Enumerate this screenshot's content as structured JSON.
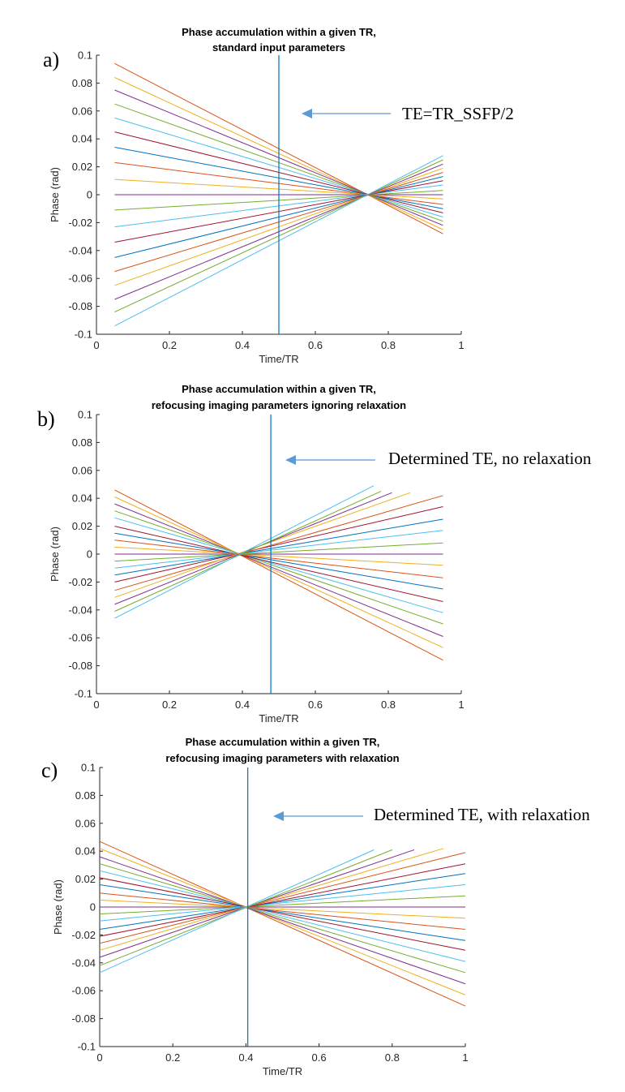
{
  "colors": [
    "#0072BD",
    "#D95319",
    "#EDB120",
    "#7E2F8E",
    "#77AC30",
    "#4DBEEE",
    "#A2142F"
  ],
  "te_line_color": "#0072BD",
  "arrow_color": "#5B9BD5",
  "chart_data": [
    {
      "type": "line",
      "panel_label": "a)",
      "title": [
        "Phase accumulation within a given TR,",
        "standard input parameters"
      ],
      "xlabel": "Time/TR",
      "ylabel": "Phase (rad)",
      "xlim": [
        0,
        1
      ],
      "ylim": [
        -0.1,
        0.1
      ],
      "xticks": [
        "0",
        "0.2",
        "0.4",
        "0.6",
        "0.8",
        "1"
      ],
      "yticks": [
        "-0.1",
        "-0.08",
        "-0.06",
        "-0.04",
        "-0.02",
        "0",
        "0.02",
        "0.04",
        "0.06",
        "0.08",
        "0.1"
      ],
      "te_line_x": 0.5,
      "annotation": "TE=TR_SSFP/2",
      "series": [
        {
          "color": "#D95319",
          "x": [
            0.05,
            0.95
          ],
          "y": [
            0.094,
            -0.028
          ]
        },
        {
          "color": "#EDB120",
          "x": [
            0.05,
            0.95
          ],
          "y": [
            0.084,
            -0.025
          ]
        },
        {
          "color": "#7E2F8E",
          "x": [
            0.05,
            0.95
          ],
          "y": [
            0.075,
            -0.022
          ]
        },
        {
          "color": "#77AC30",
          "x": [
            0.05,
            0.95
          ],
          "y": [
            0.065,
            -0.019
          ]
        },
        {
          "color": "#4DBEEE",
          "x": [
            0.05,
            0.95
          ],
          "y": [
            0.055,
            -0.016
          ]
        },
        {
          "color": "#A2142F",
          "x": [
            0.05,
            0.95
          ],
          "y": [
            0.045,
            -0.013
          ]
        },
        {
          "color": "#0072BD",
          "x": [
            0.05,
            0.95
          ],
          "y": [
            0.034,
            -0.01
          ]
        },
        {
          "color": "#D95319",
          "x": [
            0.05,
            0.95
          ],
          "y": [
            0.023,
            -0.007
          ]
        },
        {
          "color": "#EDB120",
          "x": [
            0.05,
            0.95
          ],
          "y": [
            0.011,
            -0.003
          ]
        },
        {
          "color": "#7E2F8E",
          "x": [
            0.05,
            0.95
          ],
          "y": [
            0.0,
            0.0
          ]
        },
        {
          "color": "#77AC30",
          "x": [
            0.05,
            0.95
          ],
          "y": [
            -0.011,
            0.003
          ]
        },
        {
          "color": "#4DBEEE",
          "x": [
            0.05,
            0.95
          ],
          "y": [
            -0.023,
            0.007
          ]
        },
        {
          "color": "#A2142F",
          "x": [
            0.05,
            0.95
          ],
          "y": [
            -0.034,
            0.01
          ]
        },
        {
          "color": "#0072BD",
          "x": [
            0.05,
            0.95
          ],
          "y": [
            -0.045,
            0.013
          ]
        },
        {
          "color": "#D95319",
          "x": [
            0.05,
            0.95
          ],
          "y": [
            -0.055,
            0.016
          ]
        },
        {
          "color": "#EDB120",
          "x": [
            0.05,
            0.95
          ],
          "y": [
            -0.065,
            0.019
          ]
        },
        {
          "color": "#7E2F8E",
          "x": [
            0.05,
            0.95
          ],
          "y": [
            -0.075,
            0.022
          ]
        },
        {
          "color": "#77AC30",
          "x": [
            0.05,
            0.95
          ],
          "y": [
            -0.084,
            0.025
          ]
        },
        {
          "color": "#4DBEEE",
          "x": [
            0.05,
            0.95
          ],
          "y": [
            -0.094,
            0.028
          ]
        }
      ]
    },
    {
      "type": "line",
      "panel_label": "b)",
      "title": [
        "Phase accumulation within a given TR,",
        "refocusing imaging parameters ignoring relaxation"
      ],
      "xlabel": "Time/TR",
      "ylabel": "Phase (rad)",
      "xlim": [
        0,
        1
      ],
      "ylim": [
        -0.1,
        0.1
      ],
      "xticks": [
        "0",
        "0.2",
        "0.4",
        "0.6",
        "0.8",
        "1"
      ],
      "yticks": [
        "-0.1",
        "-0.08",
        "-0.06",
        "-0.04",
        "-0.02",
        "0",
        "0.02",
        "0.04",
        "0.06",
        "0.08",
        "0.1"
      ],
      "te_line_x": 0.478,
      "annotation": "Determined TE, no relaxation",
      "series": [
        {
          "color": "#D95319",
          "x": [
            0.05,
            0.95
          ],
          "y": [
            0.046,
            -0.076
          ]
        },
        {
          "color": "#EDB120",
          "x": [
            0.05,
            0.95
          ],
          "y": [
            0.041,
            -0.067
          ]
        },
        {
          "color": "#7E2F8E",
          "x": [
            0.05,
            0.95
          ],
          "y": [
            0.036,
            -0.059
          ]
        },
        {
          "color": "#77AC30",
          "x": [
            0.05,
            0.95
          ],
          "y": [
            0.031,
            -0.05
          ]
        },
        {
          "color": "#4DBEEE",
          "x": [
            0.05,
            0.95
          ],
          "y": [
            0.026,
            -0.042
          ]
        },
        {
          "color": "#A2142F",
          "x": [
            0.05,
            0.95
          ],
          "y": [
            0.02,
            -0.034
          ]
        },
        {
          "color": "#0072BD",
          "x": [
            0.05,
            0.95
          ],
          "y": [
            0.015,
            -0.025
          ]
        },
        {
          "color": "#D95319",
          "x": [
            0.05,
            0.95
          ],
          "y": [
            0.01,
            -0.017
          ]
        },
        {
          "color": "#EDB120",
          "x": [
            0.05,
            0.95
          ],
          "y": [
            0.005,
            -0.008
          ]
        },
        {
          "color": "#7E2F8E",
          "x": [
            0.05,
            0.95
          ],
          "y": [
            0.0,
            0.0
          ]
        },
        {
          "color": "#77AC30",
          "x": [
            0.05,
            0.95
          ],
          "y": [
            -0.005,
            0.008
          ]
        },
        {
          "color": "#4DBEEE",
          "x": [
            0.05,
            0.95
          ],
          "y": [
            -0.01,
            0.017
          ]
        },
        {
          "color": "#0072BD",
          "x": [
            0.05,
            0.95
          ],
          "y": [
            -0.015,
            0.025
          ]
        },
        {
          "color": "#A2142F",
          "x": [
            0.05,
            0.95
          ],
          "y": [
            -0.02,
            0.034
          ]
        },
        {
          "color": "#D95319",
          "x": [
            0.05,
            0.95
          ],
          "y": [
            -0.026,
            0.042
          ]
        },
        {
          "color": "#EDB120",
          "x": [
            0.05,
            0.86
          ],
          "y": [
            -0.031,
            0.044
          ]
        },
        {
          "color": "#7E2F8E",
          "x": [
            0.05,
            0.81
          ],
          "y": [
            -0.036,
            0.044
          ]
        },
        {
          "color": "#77AC30",
          "x": [
            0.05,
            0.78
          ],
          "y": [
            -0.041,
            0.045
          ]
        },
        {
          "color": "#4DBEEE",
          "x": [
            0.05,
            0.76
          ],
          "y": [
            -0.046,
            0.049
          ]
        }
      ]
    },
    {
      "type": "line",
      "panel_label": "c)",
      "title": [
        "Phase accumulation within a given TR,",
        "refocusing imaging parameters with relaxation"
      ],
      "xlabel": "Time/TR",
      "ylabel": "Phase (rad)",
      "xlim": [
        0,
        1
      ],
      "ylim": [
        -0.1,
        0.1
      ],
      "xticks": [
        "0",
        "0.2",
        "0.4",
        "0.6",
        "0.8",
        "1"
      ],
      "yticks": [
        "-0.1",
        "-0.08",
        "-0.06",
        "-0.04",
        "-0.02",
        "0",
        "0.02",
        "0.04",
        "0.06",
        "0.08",
        "0.1"
      ],
      "te_line_x": 0.405,
      "annotation": "Determined TE, with relaxation",
      "series": [
        {
          "color": "#D95319",
          "x": [
            0.0,
            1.0
          ],
          "y": [
            0.047,
            -0.071
          ]
        },
        {
          "color": "#EDB120",
          "x": [
            0.0,
            1.0
          ],
          "y": [
            0.042,
            -0.063
          ]
        },
        {
          "color": "#7E2F8E",
          "x": [
            0.0,
            1.0
          ],
          "y": [
            0.036,
            -0.055
          ]
        },
        {
          "color": "#77AC30",
          "x": [
            0.0,
            1.0
          ],
          "y": [
            0.031,
            -0.047
          ]
        },
        {
          "color": "#4DBEEE",
          "x": [
            0.0,
            1.0
          ],
          "y": [
            0.026,
            -0.039
          ]
        },
        {
          "color": "#A2142F",
          "x": [
            0.0,
            1.0
          ],
          "y": [
            0.021,
            -0.031
          ]
        },
        {
          "color": "#0072BD",
          "x": [
            0.0,
            1.0
          ],
          "y": [
            0.016,
            -0.024
          ]
        },
        {
          "color": "#D95319",
          "x": [
            0.0,
            1.0
          ],
          "y": [
            0.01,
            -0.016
          ]
        },
        {
          "color": "#EDB120",
          "x": [
            0.0,
            1.0
          ],
          "y": [
            0.005,
            -0.008
          ]
        },
        {
          "color": "#7E2F8E",
          "x": [
            0.0,
            1.0
          ],
          "y": [
            0.0,
            0.0
          ]
        },
        {
          "color": "#77AC30",
          "x": [
            0.0,
            1.0
          ],
          "y": [
            -0.005,
            0.008
          ]
        },
        {
          "color": "#4DBEEE",
          "x": [
            0.0,
            1.0
          ],
          "y": [
            -0.01,
            0.016
          ]
        },
        {
          "color": "#0072BD",
          "x": [
            0.0,
            1.0
          ],
          "y": [
            -0.016,
            0.024
          ]
        },
        {
          "color": "#A2142F",
          "x": [
            0.0,
            1.0
          ],
          "y": [
            -0.021,
            0.031
          ]
        },
        {
          "color": "#D95319",
          "x": [
            0.0,
            1.0
          ],
          "y": [
            -0.026,
            0.039
          ]
        },
        {
          "color": "#EDB120",
          "x": [
            0.0,
            0.94
          ],
          "y": [
            -0.031,
            0.042
          ]
        },
        {
          "color": "#7E2F8E",
          "x": [
            0.0,
            0.86
          ],
          "y": [
            -0.036,
            0.041
          ]
        },
        {
          "color": "#77AC30",
          "x": [
            0.0,
            0.8
          ],
          "y": [
            -0.042,
            0.041
          ]
        },
        {
          "color": "#4DBEEE",
          "x": [
            0.0,
            0.75
          ],
          "y": [
            -0.047,
            0.041
          ]
        }
      ]
    }
  ]
}
